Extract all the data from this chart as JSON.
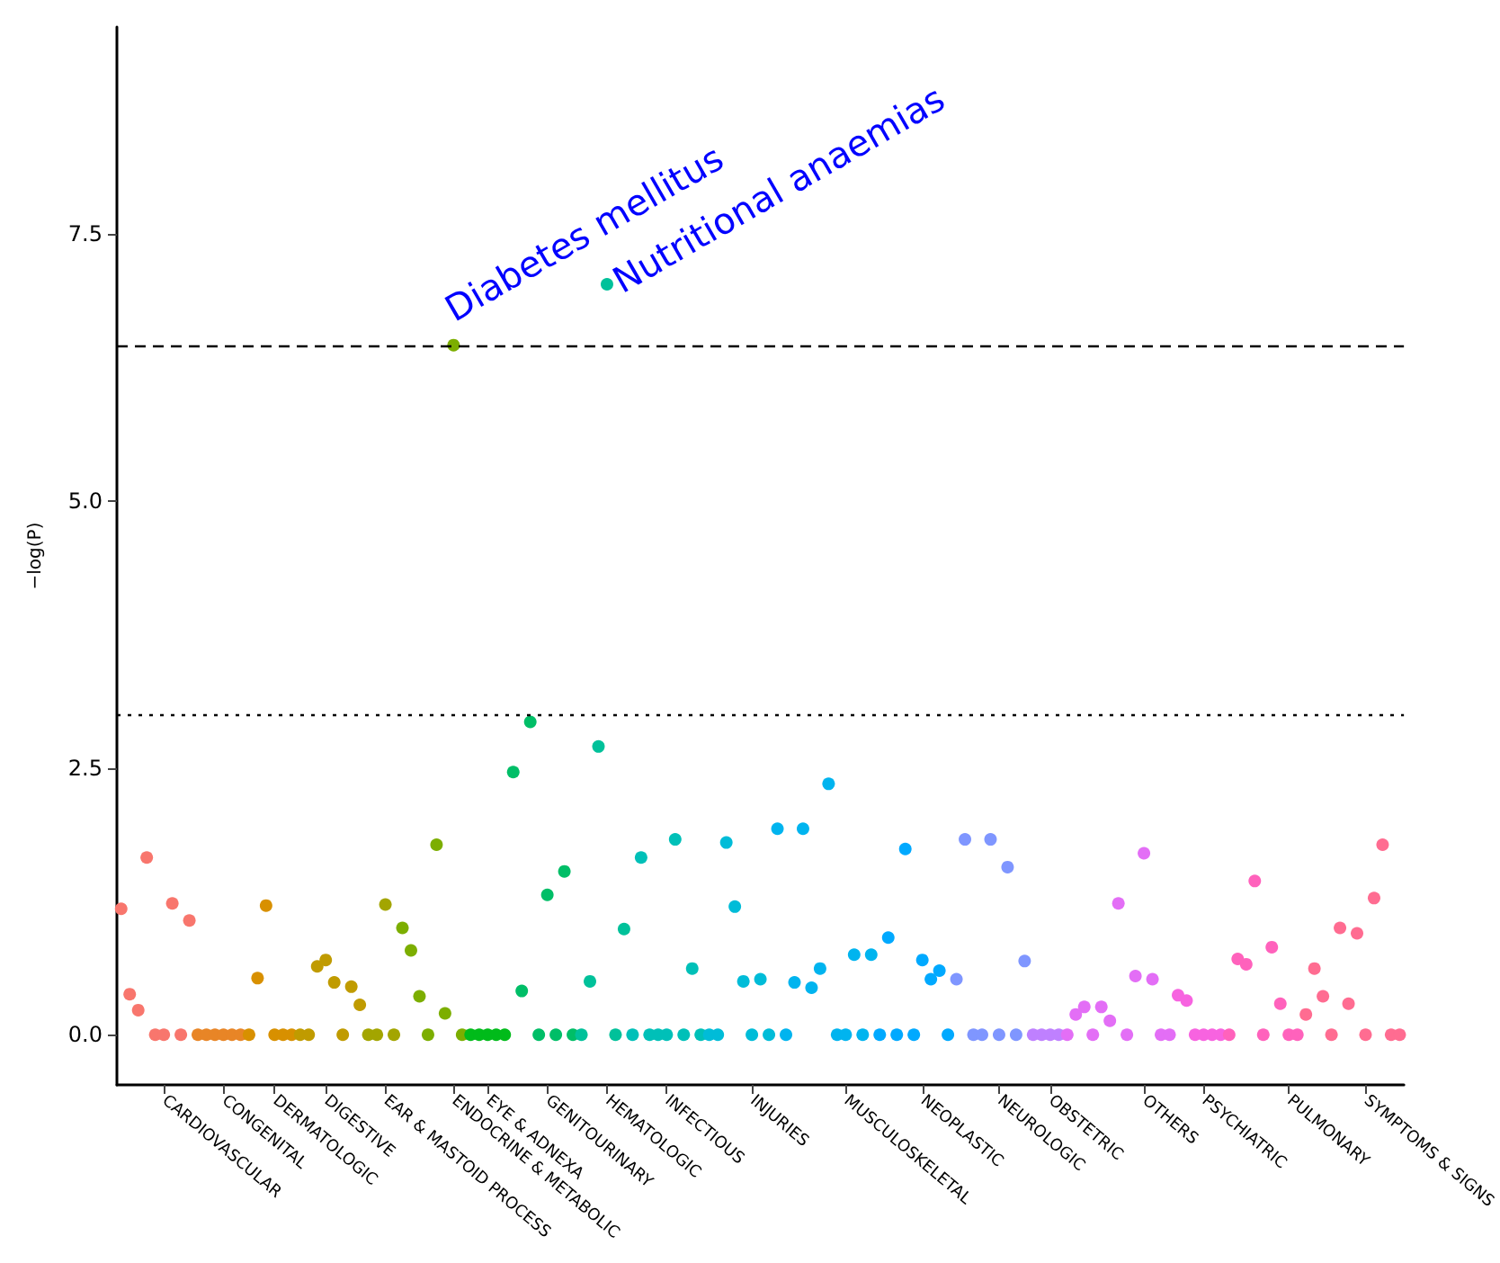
{
  "chart_data": {
    "type": "scatter",
    "ylabel": "−log(P)",
    "ylim": [
      -0.47,
      9.44
    ],
    "yticks": [
      {
        "value": 0,
        "label": "0.0"
      },
      {
        "value": 2.5,
        "label": "2.5"
      },
      {
        "value": 5,
        "label": "5.0"
      },
      {
        "value": 7.5,
        "label": "7.5"
      }
    ],
    "categories": [
      null,
      null,
      null,
      null,
      null,
      "CARDIOVASCULAR",
      null,
      null,
      null,
      null,
      null,
      null,
      "CONGENITAL",
      null,
      null,
      null,
      null,
      null,
      "DERMATOLOGIC",
      null,
      null,
      null,
      null,
      null,
      "DIGESTIVE",
      null,
      null,
      null,
      null,
      null,
      null,
      "EAR & MASTOID PROCESS",
      null,
      null,
      null,
      null,
      null,
      null,
      null,
      "ENDOCRINE & METABOLIC",
      null,
      null,
      null,
      "EYE & ADNEXA",
      null,
      null,
      null,
      null,
      null,
      null,
      "GENITOURINARY",
      null,
      null,
      null,
      null,
      null,
      null,
      "HEMATOLOGIC",
      null,
      null,
      null,
      null,
      null,
      null,
      "INFECTIOUS",
      null,
      null,
      null,
      null,
      null,
      null,
      null,
      null,
      null,
      "INJURIES",
      null,
      null,
      null,
      null,
      null,
      null,
      null,
      null,
      null,
      null,
      "MUSCULOSKELETAL",
      null,
      null,
      null,
      null,
      null,
      null,
      null,
      null,
      "NEOPLASTIC",
      null,
      null,
      null,
      null,
      null,
      null,
      null,
      null,
      "NEUROLOGIC",
      null,
      null,
      null,
      null,
      null,
      "OBSTETRIC",
      null,
      null,
      null,
      null,
      null,
      null,
      null,
      null,
      null,
      null,
      "OTHERS",
      null,
      null,
      null,
      null,
      null,
      null,
      "PSYCHIATRIC",
      null,
      null,
      null,
      null,
      null,
      null,
      null,
      null,
      null,
      "PULMONARY",
      null,
      null,
      null,
      null,
      null,
      null,
      null,
      null,
      "SYMPTOMS & SIGNS",
      null,
      null,
      null,
      null
    ],
    "values": [
      1.18,
      0.38,
      0.23,
      1.66,
      0,
      0,
      1.23,
      0,
      1.07,
      0,
      0,
      0,
      0,
      0,
      0,
      0,
      0.53,
      1.21,
      0,
      0,
      0,
      0,
      0,
      0.64,
      0.7,
      0.49,
      0,
      0.45,
      0.28,
      0,
      0,
      1.22,
      0,
      1.0,
      0.79,
      0.36,
      0,
      1.78,
      0.2,
      6.46,
      0,
      0,
      0,
      0,
      0,
      0,
      2.46,
      0.41,
      2.93,
      0,
      1.31,
      0,
      1.53,
      0,
      0,
      0.5,
      2.7,
      7.03,
      0,
      0.99,
      0,
      1.66,
      0,
      0,
      0,
      1.83,
      0,
      0.62,
      0,
      0,
      0,
      1.8,
      1.2,
      0.5,
      0,
      0.52,
      0,
      1.93,
      0,
      0.49,
      1.93,
      0.44,
      0.62,
      2.35,
      0,
      0,
      0.75,
      0,
      0.75,
      0,
      0.91,
      0,
      1.74,
      0,
      0.7,
      0.52,
      0.6,
      0,
      0.52,
      1.83,
      0,
      0,
      1.83,
      0,
      1.57,
      0,
      0.69,
      0,
      0,
      0,
      0,
      0,
      0.19,
      0.26,
      0,
      0.26,
      0.13,
      1.23,
      0,
      0.55,
      1.7,
      0.52,
      0,
      0,
      0.37,
      0.32,
      0,
      0,
      0,
      0,
      0,
      0.71,
      0.66,
      1.44,
      0,
      0.82,
      0.29,
      0,
      0,
      0.19,
      0.62,
      0.36,
      0,
      1.0,
      0.29,
      0.95,
      0,
      1.28,
      1.78,
      0,
      0
    ],
    "colors": [
      "#f8766d",
      "#f8766d",
      "#f8766d",
      "#f8766d",
      "#f8766d",
      "#f8766d",
      "#f8766d",
      "#f8766d",
      "#f8766d",
      "#e88526",
      "#e88526",
      "#e88526",
      "#e88526",
      "#e88526",
      "#e88526",
      "#d89000",
      "#d89000",
      "#d89000",
      "#d89000",
      "#d89000",
      "#d89000",
      "#c09b00",
      "#c09b00",
      "#c09b00",
      "#c09b00",
      "#c09b00",
      "#c09b00",
      "#c09b00",
      "#c09b00",
      "#a3a500",
      "#a3a500",
      "#a3a500",
      "#a3a500",
      "#7cae00",
      "#7cae00",
      "#7cae00",
      "#7cae00",
      "#7cae00",
      "#7cae00",
      "#7cae00",
      "#7cae00",
      "#00bb1a",
      "#00bb1a",
      "#00bb1a",
      "#00bb1a",
      "#00bb1a",
      "#00be67",
      "#00be67",
      "#00be67",
      "#00be67",
      "#00be67",
      "#00be67",
      "#00be67",
      "#00be67",
      "#00c19a",
      "#00c19a",
      "#00c19a",
      "#00c19a",
      "#00c19a",
      "#00c19a",
      "#00c0b8",
      "#00c0b8",
      "#00c0b8",
      "#00c0b8",
      "#00c0b8",
      "#00c0b8",
      "#00c0b8",
      "#00c0b8",
      "#00c0b8",
      "#00bcd8",
      "#00bcd8",
      "#00bcd8",
      "#00bcd8",
      "#00bcd8",
      "#00bcd8",
      "#00bcd8",
      "#00bcd8",
      "#00b4ef",
      "#00b4ef",
      "#00b4ef",
      "#00b4ef",
      "#00b4ef",
      "#00b4ef",
      "#00b4ef",
      "#00b4ef",
      "#00b4ef",
      "#00b4ef",
      "#00b4ef",
      "#00b4ef",
      "#00a9ff",
      "#00a9ff",
      "#00a9ff",
      "#00a9ff",
      "#00a9ff",
      "#00a9ff",
      "#00a9ff",
      "#00a9ff",
      "#00a9ff",
      "#7f96ff",
      "#7f96ff",
      "#7f96ff",
      "#7f96ff",
      "#7f96ff",
      "#7f96ff",
      "#7f96ff",
      "#7f96ff",
      "#7f96ff",
      "#bf80ff",
      "#bf80ff",
      "#bf80ff",
      "#bf80ff",
      "#e36ef6",
      "#e36ef6",
      "#e36ef6",
      "#e36ef6",
      "#e36ef6",
      "#e36ef6",
      "#e36ef6",
      "#e36ef6",
      "#e36ef6",
      "#e36ef6",
      "#e36ef6",
      "#e36ef6",
      "#e36ef6",
      "#f763e0",
      "#f763e0",
      "#f763e0",
      "#f763e0",
      "#f763e0",
      "#f763e0",
      "#ff62bc",
      "#ff62bc",
      "#ff62bc",
      "#ff62bc",
      "#ff62bc",
      "#ff62bc",
      "#ff62bc",
      "#ff62bc",
      "#ff62bc",
      "#ff6c91",
      "#ff6c91",
      "#ff6c91",
      "#ff6c91",
      "#ff6c91",
      "#ff6c91",
      "#ff6c91",
      "#ff6c91",
      "#ff6c91",
      "#ff6c91",
      "#ff6c91",
      "#ff6c91"
    ],
    "ref_lines": [
      {
        "axis": "y",
        "value": 6.46,
        "line_style": "dashed"
      },
      {
        "axis": "y",
        "value": 3.0,
        "line_style": "dotted"
      }
    ],
    "annotations": [
      {
        "text": "Diabetes mellitus",
        "x": "ENDOCRINE & METABOLIC",
        "y": 6.46
      },
      {
        "text": "Nutritional anaemias",
        "x": "HEMATOLOGIC",
        "y": 7.03
      }
    ],
    "marker": "circle",
    "grid": false
  }
}
